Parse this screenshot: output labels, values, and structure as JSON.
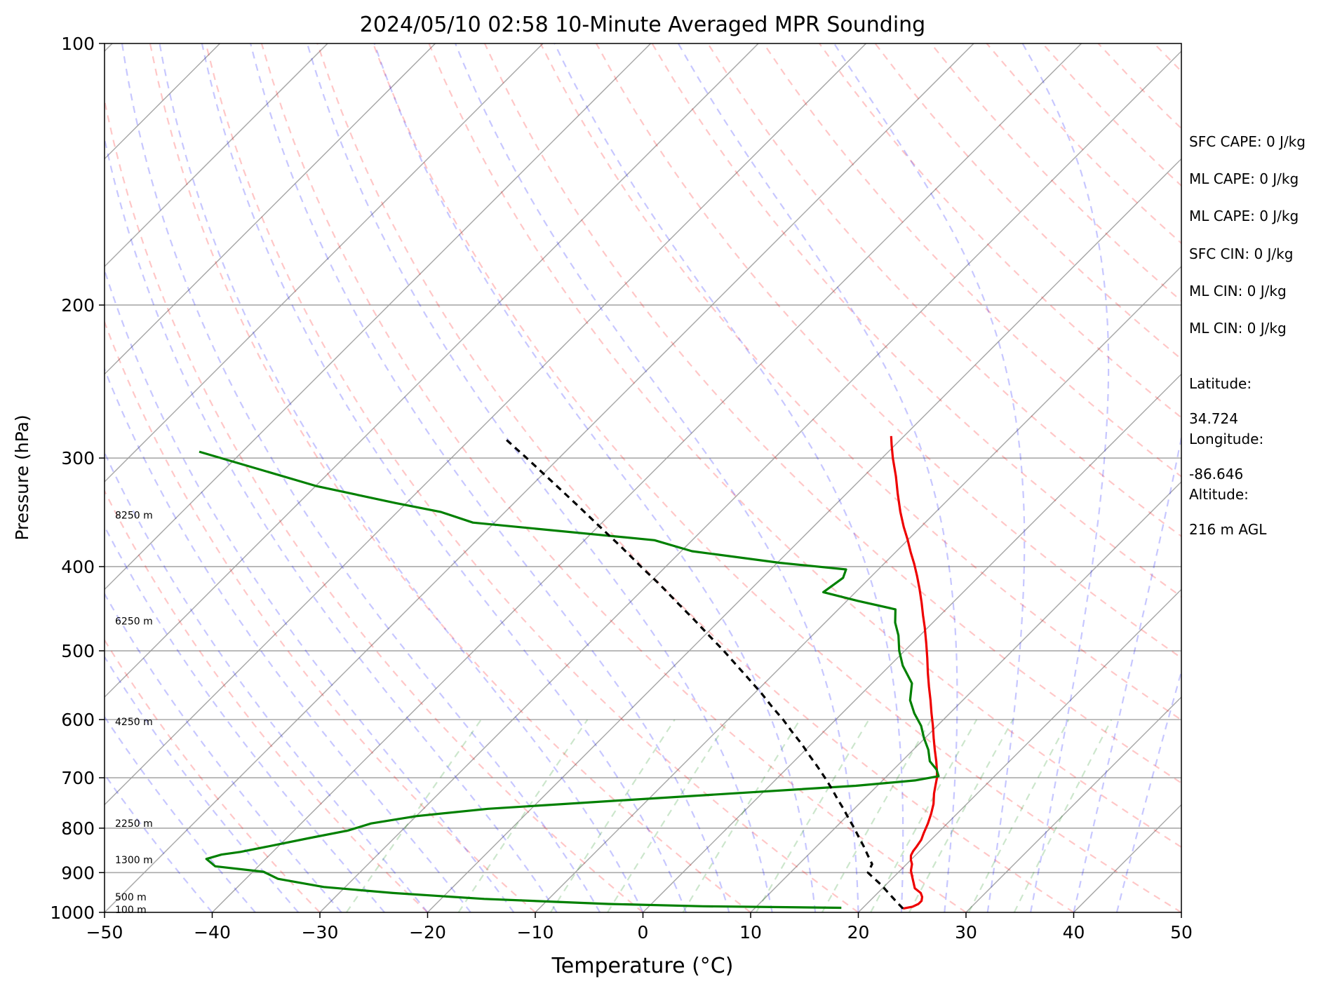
{
  "chart_data": {
    "type": "line",
    "subtype": "skew-t log-p",
    "title": "2024/05/10 02:58 10-Minute Averaged MPR Sounding",
    "xlabel": "Temperature (°C)",
    "ylabel": "Pressure (hPa)",
    "xlim": [
      -50,
      50
    ],
    "ylim": [
      1000,
      100
    ],
    "y_scale": "log",
    "x_ticks": [
      "−50",
      "−40",
      "−30",
      "−20",
      "−10",
      "0",
      "10",
      "20",
      "30",
      "40",
      "50"
    ],
    "y_ticks": [
      "100",
      "200",
      "300",
      "400",
      "500",
      "600",
      "700",
      "800",
      "900",
      "1000"
    ],
    "grid": true,
    "height_labels": [
      {
        "text": "8250 m",
        "p": 349
      },
      {
        "text": "6250 m",
        "p": 462
      },
      {
        "text": "4250 m",
        "p": 603
      },
      {
        "text": "2250 m",
        "p": 790
      },
      {
        "text": "1300 m",
        "p": 870
      },
      {
        "text": "500 m",
        "p": 960
      },
      {
        "text": "100 m",
        "p": 993
      }
    ],
    "series": [
      {
        "role": "temperature",
        "color": "#ee0000",
        "p": [
          990,
          985,
          978,
          970,
          960,
          950,
          938,
          925,
          910,
          895,
          880,
          870,
          860,
          850,
          840,
          825,
          810,
          790,
          770,
          750,
          730,
          715,
          700,
          690,
          670,
          650,
          630,
          610,
          590,
          570,
          550,
          530,
          510,
          490,
          470,
          455,
          440,
          425,
          410,
          397,
          385,
          372,
          360,
          346,
          330,
          315,
          300,
          290,
          283
        ],
        "t": [
          23.8,
          24.5,
          24.8,
          24.8,
          24.5,
          24.0,
          23.0,
          22.4,
          21.7,
          21.0,
          20.5,
          20.0,
          19.6,
          19.4,
          19.3,
          19.1,
          18.7,
          18.2,
          17.6,
          16.9,
          16.0,
          15.4,
          14.8,
          14.3,
          13.2,
          12.0,
          10.8,
          9.6,
          8.3,
          7.0,
          5.6,
          4.2,
          2.8,
          1.3,
          -0.3,
          -1.6,
          -2.9,
          -4.3,
          -5.8,
          -7.2,
          -8.6,
          -10.1,
          -11.6,
          -13.3,
          -15.2,
          -17.0,
          -19.0,
          -20.3,
          -21.2
        ]
      },
      {
        "role": "dewpoint",
        "color": "#008000",
        "p": [
          988,
          984,
          978,
          965,
          950,
          935,
          915,
          898,
          885,
          868,
          858,
          852,
          840,
          822,
          805,
          790,
          775,
          760,
          744,
          730,
          715,
          705,
          697,
          685,
          670,
          650,
          630,
          610,
          590,
          570,
          545,
          520,
          500,
          480,
          464,
          448,
          438,
          428,
          412,
          403,
          396,
          384,
          373,
          356,
          346,
          338,
          323,
          295
        ],
        "t": [
          18.0,
          5.0,
          -4.0,
          -16.0,
          -25.0,
          -32.0,
          -37.0,
          -39.0,
          -44.0,
          -45.5,
          -44.5,
          -43.0,
          -41.0,
          -38.0,
          -35.0,
          -33.5,
          -30.0,
          -24.0,
          -13.0,
          -3.0,
          8.0,
          13.0,
          14.8,
          14.0,
          12.6,
          11.4,
          9.9,
          8.5,
          6.7,
          5.1,
          3.7,
          1.2,
          -0.5,
          -2.0,
          -3.5,
          -4.7,
          -9.0,
          -13.0,
          -12.5,
          -13.0,
          -19.8,
          -29.0,
          -33.5,
          -52.0,
          -56.0,
          -61.0,
          -70.0,
          -84.0
        ]
      },
      {
        "role": "parcel",
        "color": "#000000",
        "p": [
          990,
          970,
          950,
          930,
          910,
          900,
          880,
          860,
          840,
          820,
          800,
          780,
          760,
          740,
          720,
          700,
          680,
          660,
          640,
          620,
          600,
          580,
          560,
          540,
          520,
          500,
          480,
          460,
          440,
          420,
          400,
          380,
          360,
          340,
          320,
          300,
          285
        ],
        "t": [
          23.8,
          22.4,
          21.0,
          19.6,
          18.0,
          17.2,
          16.8,
          15.6,
          14.4,
          13.1,
          11.8,
          10.4,
          9.0,
          7.5,
          6.0,
          4.4,
          2.7,
          0.9,
          -0.9,
          -2.9,
          -4.9,
          -7.1,
          -9.3,
          -11.7,
          -14.2,
          -16.8,
          -19.6,
          -22.5,
          -25.6,
          -28.8,
          -32.3,
          -35.9,
          -39.8,
          -43.9,
          -48.3,
          -53.0,
          -56.8
        ]
      }
    ],
    "reference_lines": {
      "dry_adiabats_color": "#ff0000",
      "moist_adiabats_color": "#0000ff",
      "mixing_ratio_color": "#008000",
      "isotherms_color": "#999999"
    }
  },
  "stats": {
    "sfc_cape": "SFC CAPE: 0 J/kg",
    "ml_cape": "ML CAPE: 0 J/kg",
    "ml_cape_2": "ML CAPE: 0 J/kg",
    "sfc_cin": "SFC CIN: 0 J/kg",
    "ml_cin": "ML CIN: 0 J/kg",
    "ml_cin_2": "ML CIN: 0 J/kg",
    "latitude_label": "Latitude:",
    "latitude": "34.724",
    "longitude_label": "Longitude:",
    "longitude": "-86.646",
    "altitude_label": "Altitude:",
    "altitude": "216 m AGL"
  }
}
